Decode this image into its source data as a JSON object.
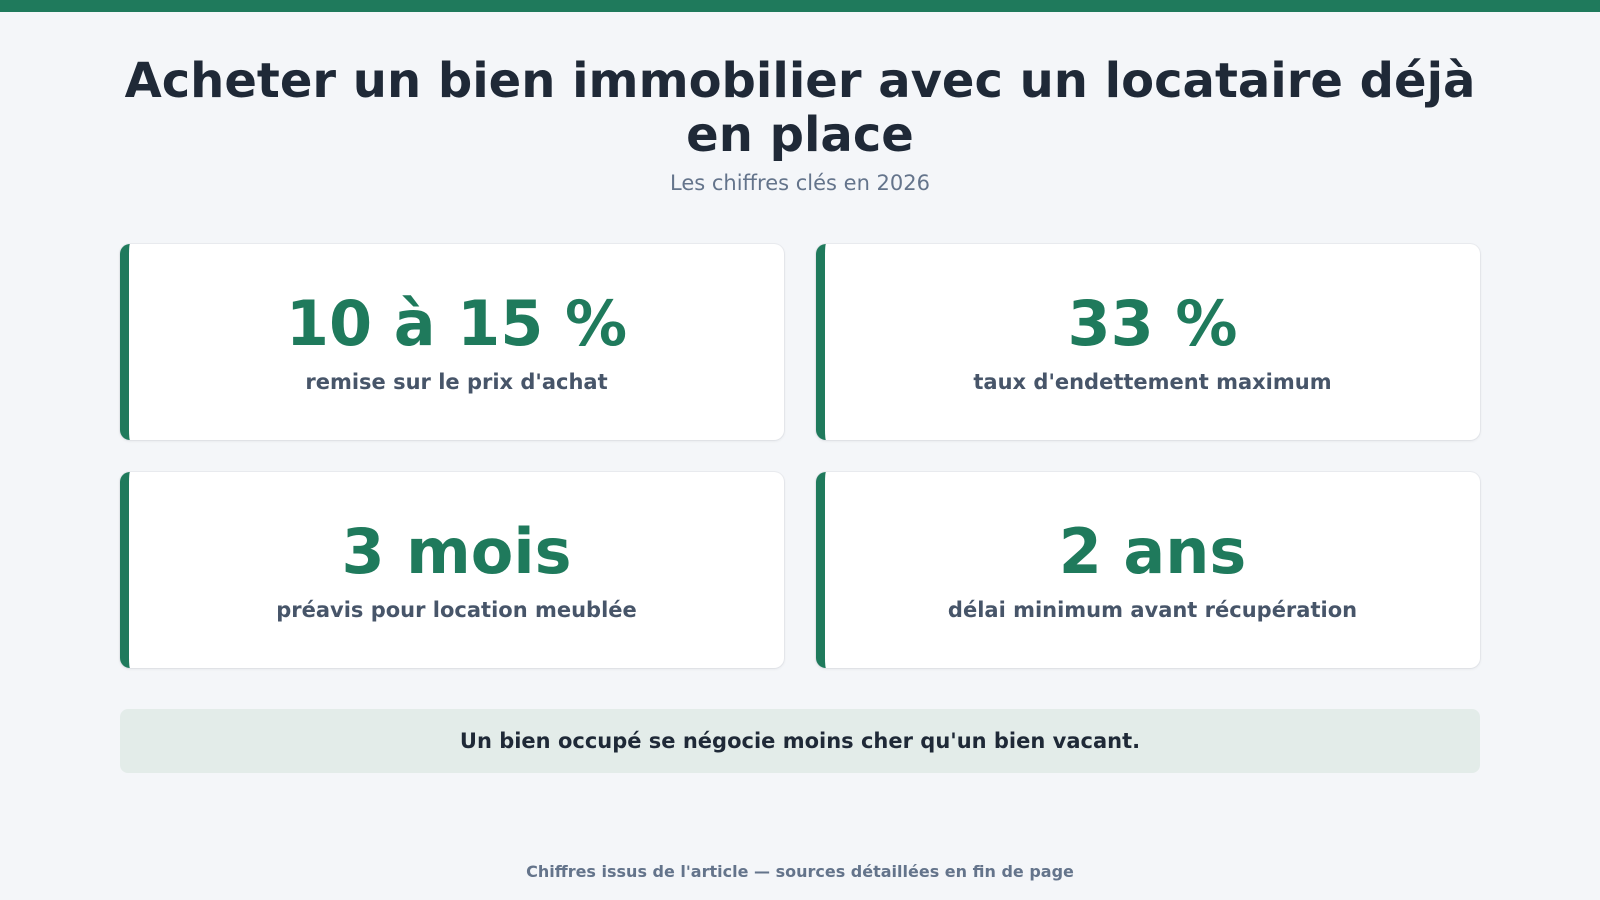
{
  "header": {
    "title": "Acheter un bien immobilier avec un locataire déjà en place",
    "subtitle": "Les chiffres clés en 2026"
  },
  "stats": [
    {
      "value": "10 à 15 %",
      "label": "remise sur le prix d'achat"
    },
    {
      "value": "33 %",
      "label": "taux d'endettement maximum"
    },
    {
      "value": "3 mois",
      "label": "préavis pour location meublée"
    },
    {
      "value": "2 ans",
      "label": "délai minimum avant récupération"
    }
  ],
  "highlight": {
    "text": "Un bien occupé se négocie moins cher qu'un bien vacant."
  },
  "footer": {
    "text": "Chiffres issus de l'article — sources détaillées en fin de page"
  },
  "colors": {
    "accent": "#1f7a5c",
    "background": "#f4f6f9",
    "title": "#1f2937",
    "muted": "#64748b",
    "highlight_bg": "#e3ece9"
  }
}
